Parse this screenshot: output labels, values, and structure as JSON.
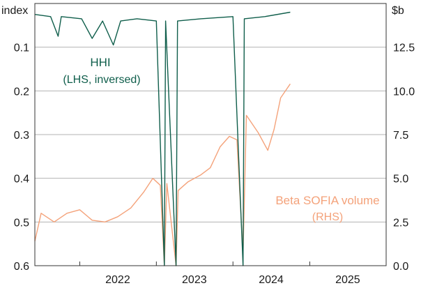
{
  "chart_data": {
    "type": "line",
    "title": "",
    "left_axis": {
      "unit_label": "index",
      "inverted": true,
      "range": [
        0.6,
        0.0
      ],
      "ticks": [
        0.1,
        0.2,
        0.3,
        0.4,
        0.5,
        0.6
      ],
      "tick_labels": [
        "0.1",
        "0.2",
        "0.3",
        "0.4",
        "0.5",
        "0.6"
      ]
    },
    "right_axis": {
      "unit_label": "$b",
      "range": [
        0,
        15
      ],
      "ticks": [
        0,
        2.5,
        5,
        7.5,
        10,
        12.5
      ],
      "tick_labels": [
        "0.0",
        "2.5",
        "5.0",
        "7.5",
        "10.0",
        "12.5"
      ]
    },
    "x_axis": {
      "range": [
        "2021-06-01",
        "2025-12-31"
      ],
      "year_labels": [
        "2022",
        "2023",
        "2024",
        "2025"
      ],
      "year_positions": [
        "2022-07-01",
        "2023-07-01",
        "2024-07-01",
        "2025-07-01"
      ],
      "year_boundaries": [
        "2022-01-01",
        "2023-01-01",
        "2024-01-01",
        "2025-01-01"
      ]
    },
    "grid": true,
    "series": [
      {
        "name": "HHI",
        "sub_label": "(LHS, inversed)",
        "axis": "left",
        "color": "#0f5e4b",
        "points": [
          [
            "2021-06-01",
            0.025
          ],
          [
            "2021-08-15",
            0.03
          ],
          [
            "2021-09-20",
            0.075
          ],
          [
            "2021-10-05",
            0.03
          ],
          [
            "2022-01-10",
            0.035
          ],
          [
            "2022-03-01",
            0.08
          ],
          [
            "2022-04-20",
            0.04
          ],
          [
            "2022-06-10",
            0.095
          ],
          [
            "2022-07-15",
            0.04
          ],
          [
            "2022-10-01",
            0.035
          ],
          [
            "2023-01-01",
            0.04
          ],
          [
            "2023-02-08",
            0.65
          ],
          [
            "2023-02-14",
            0.04
          ],
          [
            "2023-04-05",
            0.62
          ],
          [
            "2023-04-12",
            0.04
          ],
          [
            "2023-08-01",
            0.035
          ],
          [
            "2024-01-01",
            0.03
          ],
          [
            "2024-02-18",
            0.62
          ],
          [
            "2024-02-24",
            0.035
          ],
          [
            "2024-06-01",
            0.03
          ],
          [
            "2024-09-30",
            0.02
          ]
        ]
      },
      {
        "name": "Beta SOFIA volume",
        "sub_label": "(RHS)",
        "axis": "right",
        "color": "#f4a27a",
        "points": [
          [
            "2021-06-01",
            1.4
          ],
          [
            "2021-07-01",
            3.0
          ],
          [
            "2021-09-01",
            2.5
          ],
          [
            "2021-11-01",
            3.0
          ],
          [
            "2022-01-01",
            3.2
          ],
          [
            "2022-03-01",
            2.6
          ],
          [
            "2022-05-01",
            2.5
          ],
          [
            "2022-07-01",
            2.8
          ],
          [
            "2022-09-01",
            3.3
          ],
          [
            "2022-11-01",
            4.2
          ],
          [
            "2022-12-15",
            5.0
          ],
          [
            "2023-01-20",
            4.6
          ],
          [
            "2023-02-08",
            0.0
          ],
          [
            "2023-02-20",
            4.7
          ],
          [
            "2023-04-05",
            0.0
          ],
          [
            "2023-04-15",
            4.3
          ],
          [
            "2023-06-01",
            4.8
          ],
          [
            "2023-08-01",
            5.2
          ],
          [
            "2023-09-15",
            5.6
          ],
          [
            "2023-11-01",
            6.8
          ],
          [
            "2023-12-15",
            7.4
          ],
          [
            "2024-01-20",
            7.2
          ],
          [
            "2024-02-18",
            0.7
          ],
          [
            "2024-03-05",
            8.6
          ],
          [
            "2024-05-01",
            7.6
          ],
          [
            "2024-06-15",
            6.6
          ],
          [
            "2024-07-15",
            7.8
          ],
          [
            "2024-08-15",
            9.6
          ],
          [
            "2024-09-30",
            10.4
          ]
        ]
      }
    ],
    "annotations": [
      {
        "series": "HHI",
        "text": "HHI",
        "sub_text": "(LHS, inversed)",
        "color": "#0f5e4b"
      },
      {
        "series": "Beta SOFIA volume",
        "text": "Beta SOFIA volume",
        "sub_text": "(RHS)",
        "color": "#f4a27a"
      }
    ]
  }
}
